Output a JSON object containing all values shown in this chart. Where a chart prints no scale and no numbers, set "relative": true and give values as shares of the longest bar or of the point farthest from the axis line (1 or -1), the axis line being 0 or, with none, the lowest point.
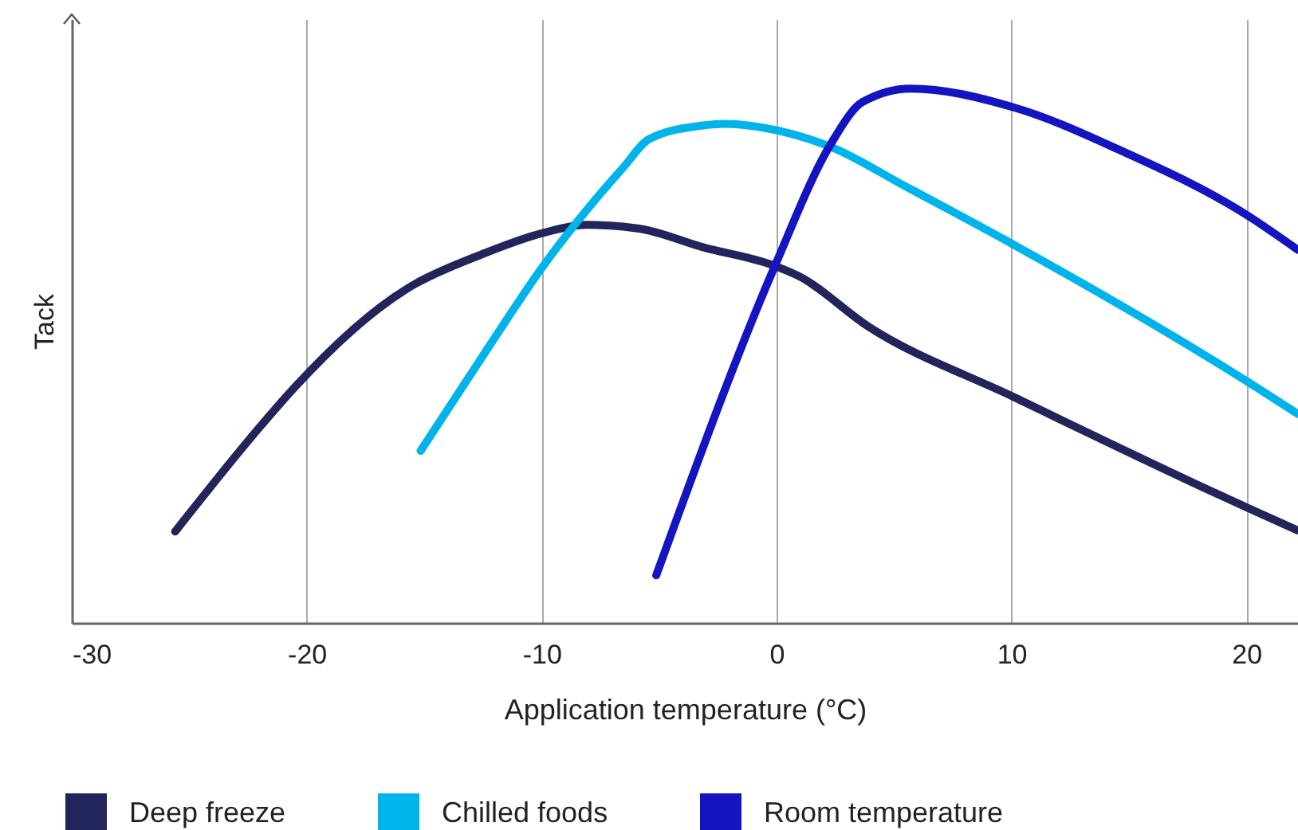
{
  "chart_data": {
    "type": "line",
    "xlabel": "Application temperature (°C)",
    "ylabel": "Tack",
    "relative": true,
    "xlim": [
      -30,
      22.2
    ],
    "xticks": [
      -30,
      -20,
      -10,
      0,
      10,
      20
    ],
    "grid": "x",
    "legend": "bottom",
    "tick_labels": "x",
    "series": [
      {
        "name": "Deep freeze",
        "color": "#22245c",
        "x": [
          -25.6,
          -15.4,
          -12.65,
          -9.93,
          -8.1,
          -5.85,
          -3.13,
          -0.07,
          0.95,
          3.9,
          10.09,
          20.07,
          22.2
        ],
        "values": [
          0.171,
          0.634,
          0.688,
          0.73,
          0.745,
          0.738,
          0.703,
          0.668,
          0.649,
          0.555,
          0.423,
          0.215,
          0.173
        ]
      },
      {
        "name": "Chilled foods",
        "color": "#00b4eb",
        "x": [
          -15.15,
          -12.2,
          -9.93,
          -6.53,
          -5.4,
          -3.13,
          -2.2,
          0.09,
          2.31,
          5.49,
          10.09,
          20.07,
          22.2
        ],
        "values": [
          0.322,
          0.52,
          0.668,
          0.852,
          0.906,
          0.931,
          0.934,
          0.921,
          0.891,
          0.817,
          0.708,
          0.451,
          0.391
        ]
      },
      {
        "name": "Room temperature",
        "color": "#1414c0",
        "x": [
          -5.12,
          -0.07,
          2.31,
          3.67,
          5.71,
          10.09,
          14.56,
          20.07,
          22.2
        ],
        "values": [
          0.089,
          0.668,
          0.896,
          0.975,
          1.0,
          0.965,
          0.886,
          0.762,
          0.698
        ]
      }
    ]
  }
}
